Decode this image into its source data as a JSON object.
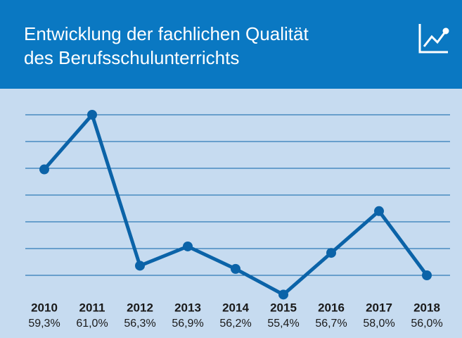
{
  "chart_data": {
    "type": "line",
    "title": [
      "Entwicklung der fachlichen Qualität",
      "des Berufsschulunterrichts"
    ],
    "categories": [
      "2010",
      "2011",
      "2012",
      "2013",
      "2014",
      "2015",
      "2016",
      "2017",
      "2018"
    ],
    "values": [
      59.3,
      61.0,
      56.3,
      56.9,
      56.2,
      55.4,
      56.7,
      58.0,
      56.0
    ],
    "value_labels": [
      "59,3%",
      "61,0%",
      "56,3%",
      "56,9%",
      "56,2%",
      "55,4%",
      "56,7%",
      "58,0%",
      "56,0%"
    ],
    "color": "#0b63a8",
    "ylim": [
      55.5,
      61.5
    ],
    "grid": true
  }
}
